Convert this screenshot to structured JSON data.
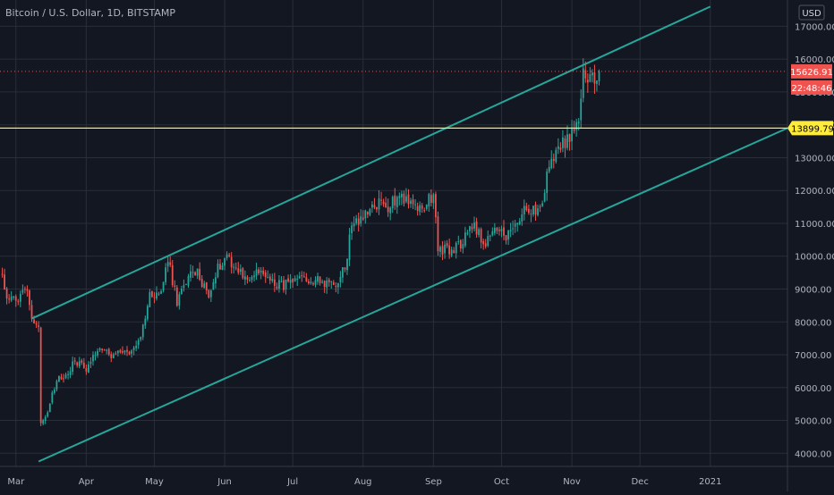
{
  "header": {
    "symbol_title": "Bitcoin / U.S. Dollar, 1D, BITSTAMP"
  },
  "price_axis": {
    "currency": "USD",
    "last_price_label": "15626.91",
    "countdown_label": "22:48:46",
    "alert_price_label": "13899.79"
  },
  "colors": {
    "background": "#131722",
    "grid": "#2a2e39",
    "up_candle": "#26a69a",
    "down_candle": "#ef5350",
    "channel_line": "#26a69a",
    "horizontal_line": "#ffeb3b",
    "last_price_badge": "#ef5350",
    "alert_badge": "#ffeb3b",
    "axis_text": "#b2b5be"
  },
  "chart_data": {
    "type": "candlestick",
    "title": "Bitcoin / U.S. Dollar, 1D, BITSTAMP",
    "ylim": [
      3600,
      17800
    ],
    "y_ticks": [
      4000,
      5000,
      6000,
      7000,
      8000,
      9000,
      10000,
      11000,
      12000,
      13000,
      14000,
      15000,
      16000,
      17000
    ],
    "y_tick_labels": [
      "4000.00",
      "5000.00",
      "6000.00",
      "7000.00",
      "8000.00",
      "9000.00",
      "10000.00",
      "11000.00",
      "12000.00",
      "13000.00",
      "14000.00",
      "15000.00",
      "16000.00",
      "17000.00"
    ],
    "x_range": [
      "2020-02-23",
      "2021-02-04"
    ],
    "x_ticks": [
      "2020-03-01",
      "2020-04-01",
      "2020-05-01",
      "2020-06-01",
      "2020-07-01",
      "2020-08-01",
      "2020-09-01",
      "2020-10-01",
      "2020-11-01",
      "2020-12-01",
      "2021-01-01"
    ],
    "x_tick_labels": [
      "Mar",
      "Apr",
      "May",
      "Jun",
      "Jul",
      "Aug",
      "Sep",
      "Oct",
      "Nov",
      "Dec",
      "2021"
    ],
    "close_series": [
      [
        "2020-02-23",
        9600
      ],
      [
        "2020-02-26",
        8800
      ],
      [
        "2020-03-01",
        8600
      ],
      [
        "2020-03-06",
        9100
      ],
      [
        "2020-03-08",
        8100
      ],
      [
        "2020-03-11",
        7900
      ],
      [
        "2020-03-12",
        4900
      ],
      [
        "2020-03-15",
        5300
      ],
      [
        "2020-03-19",
        6200
      ],
      [
        "2020-03-23",
        6400
      ],
      [
        "2020-03-27",
        6800
      ],
      [
        "2020-04-01",
        6600
      ],
      [
        "2020-04-07",
        7300
      ],
      [
        "2020-04-12",
        6900
      ],
      [
        "2020-04-17",
        7100
      ],
      [
        "2020-04-22",
        7100
      ],
      [
        "2020-04-25",
        7600
      ],
      [
        "2020-04-29",
        8800
      ],
      [
        "2020-05-04",
        8900
      ],
      [
        "2020-05-07",
        9900
      ],
      [
        "2020-05-11",
        8600
      ],
      [
        "2020-05-16",
        9400
      ],
      [
        "2020-05-20",
        9500
      ],
      [
        "2020-05-25",
        8800
      ],
      [
        "2020-05-28",
        9500
      ],
      [
        "2020-06-02",
        10100
      ],
      [
        "2020-06-05",
        9700
      ],
      [
        "2020-06-11",
        9300
      ],
      [
        "2020-06-16",
        9500
      ],
      [
        "2020-06-21",
        9300
      ],
      [
        "2020-06-26",
        9100
      ],
      [
        "2020-07-02",
        9200
      ],
      [
        "2020-07-09",
        9300
      ],
      [
        "2020-07-14",
        9200
      ],
      [
        "2020-07-20",
        9200
      ],
      [
        "2020-07-24",
        9600
      ],
      [
        "2020-07-27",
        11000
      ],
      [
        "2020-08-02",
        11200
      ],
      [
        "2020-08-08",
        11600
      ],
      [
        "2020-08-12",
        11500
      ],
      [
        "2020-08-17",
        11900
      ],
      [
        "2020-08-22",
        11600
      ],
      [
        "2020-08-27",
        11400
      ],
      [
        "2020-09-01",
        11900
      ],
      [
        "2020-09-03",
        10300
      ],
      [
        "2020-09-08",
        10100
      ],
      [
        "2020-09-13",
        10400
      ],
      [
        "2020-09-19",
        11000
      ],
      [
        "2020-09-23",
        10300
      ],
      [
        "2020-09-28",
        10800
      ],
      [
        "2020-10-03",
        10600
      ],
      [
        "2020-10-08",
        10900
      ],
      [
        "2020-10-12",
        11500
      ],
      [
        "2020-10-16",
        11400
      ],
      [
        "2020-10-20",
        11900
      ],
      [
        "2020-10-22",
        12900
      ],
      [
        "2020-10-25",
        13100
      ],
      [
        "2020-10-29",
        13500
      ],
      [
        "2020-11-01",
        13700
      ],
      [
        "2020-11-04",
        14100
      ],
      [
        "2020-11-06",
        15500
      ],
      [
        "2020-11-08",
        15400
      ],
      [
        "2020-11-11",
        15300
      ],
      [
        "2020-11-13",
        15627
      ]
    ],
    "annotations": {
      "channel_upper": [
        [
          "2020-03-08",
          8100
        ],
        [
          "2021-01-01",
          17600
        ]
      ],
      "channel_lower": [
        [
          "2020-03-11",
          3750
        ],
        [
          "2021-02-04",
          13900
        ]
      ],
      "horizontal_line": 13899.79,
      "last_price_line": 15626.91
    }
  }
}
